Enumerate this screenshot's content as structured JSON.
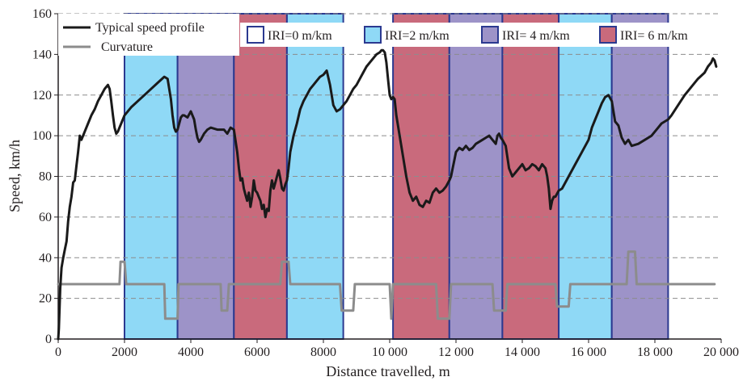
{
  "chart_data": {
    "type": "line",
    "xlabel": "Distance travelled, m",
    "ylabel": "Speed, km/h",
    "xlim": [
      0,
      20000
    ],
    "ylim": [
      0,
      160
    ],
    "x_ticks": [
      {
        "value": 0,
        "label": "0"
      },
      {
        "value": 2000,
        "label": "2000"
      },
      {
        "value": 4000,
        "label": "4000"
      },
      {
        "value": 6000,
        "label": "6000"
      },
      {
        "value": 8000,
        "label": "8000"
      },
      {
        "value": 10000,
        "label": "10 000"
      },
      {
        "value": 12000,
        "label": "12 000"
      },
      {
        "value": 14000,
        "label": "14 000"
      },
      {
        "value": 16000,
        "label": "16 000"
      },
      {
        "value": 18000,
        "label": "18 000"
      },
      {
        "value": 20000,
        "label": "20 000"
      }
    ],
    "y_ticks": [
      {
        "value": 0,
        "label": "0"
      },
      {
        "value": 20,
        "label": "20"
      },
      {
        "value": 40,
        "label": "40"
      },
      {
        "value": 60,
        "label": "60"
      },
      {
        "value": 80,
        "label": "80"
      },
      {
        "value": 100,
        "label": "100"
      },
      {
        "value": 120,
        "label": "120"
      },
      {
        "value": 140,
        "label": "140"
      },
      {
        "value": 160,
        "label": "160"
      }
    ],
    "grid": "horizontal dashed",
    "iri_classes": [
      {
        "key": "iri0",
        "label": "IRI=0 m/km",
        "color": "#ffffff"
      },
      {
        "key": "iri2",
        "label": "IRI=2 m/km",
        "color": "#8fd9f6"
      },
      {
        "key": "iri4",
        "label": "IRI= 4 m/km",
        "color": "#9d93c8"
      },
      {
        "key": "iri6",
        "label": "IRI= 6 m/km",
        "color": "#c96a7c"
      }
    ],
    "band_border_color": "#2b3990",
    "bands": [
      {
        "start": 2000,
        "end": 3600,
        "class": "iri2"
      },
      {
        "start": 3600,
        "end": 5300,
        "class": "iri4"
      },
      {
        "start": 5300,
        "end": 6900,
        "class": "iri6"
      },
      {
        "start": 6900,
        "end": 8600,
        "class": "iri2"
      },
      {
        "start": 10100,
        "end": 11800,
        "class": "iri6"
      },
      {
        "start": 11800,
        "end": 13400,
        "class": "iri4"
      },
      {
        "start": 13400,
        "end": 15100,
        "class": "iri6"
      },
      {
        "start": 15100,
        "end": 16700,
        "class": "iri2"
      },
      {
        "start": 16700,
        "end": 18400,
        "class": "iri4"
      }
    ],
    "series": [
      {
        "name": "Typical speed profile",
        "color": "#1a1a1a",
        "x": [
          0,
          20,
          60,
          100,
          150,
          200,
          250,
          300,
          350,
          400,
          450,
          500,
          550,
          600,
          650,
          700,
          800,
          900,
          1000,
          1100,
          1200,
          1300,
          1400,
          1450,
          1500,
          1550,
          1600,
          1650,
          1700,
          1750,
          1800,
          1850,
          1900,
          2000,
          2100,
          2200,
          2400,
          2600,
          2800,
          3000,
          3200,
          3300,
          3400,
          3450,
          3500,
          3550,
          3600,
          3650,
          3700,
          3750,
          3800,
          3900,
          4000,
          4100,
          4150,
          4200,
          4250,
          4300,
          4400,
          4500,
          4600,
          4800,
          5000,
          5100,
          5200,
          5300,
          5400,
          5450,
          5500,
          5550,
          5600,
          5650,
          5700,
          5750,
          5800,
          5850,
          5900,
          5950,
          6000,
          6050,
          6100,
          6150,
          6200,
          6250,
          6300,
          6350,
          6400,
          6450,
          6500,
          6550,
          6600,
          6650,
          6700,
          6750,
          6800,
          6850,
          6900,
          6950,
          7000,
          7100,
          7200,
          7300,
          7400,
          7500,
          7600,
          7700,
          7800,
          7900,
          8000,
          8100,
          8200,
          8300,
          8400,
          8500,
          8600,
          8700,
          8800,
          8900,
          9000,
          9100,
          9200,
          9300,
          9400,
          9500,
          9600,
          9700,
          9750,
          9800,
          9850,
          9900,
          9950,
          10000,
          10050,
          10100,
          10150,
          10200,
          10300,
          10400,
          10500,
          10600,
          10700,
          10800,
          10900,
          11000,
          11100,
          11200,
          11300,
          11400,
          11500,
          11600,
          11700,
          11800,
          11850,
          11900,
          11950,
          12000,
          12100,
          12200,
          12300,
          12400,
          12500,
          12600,
          12700,
          12800,
          12900,
          13000,
          13100,
          13200,
          13250,
          13300,
          13350,
          13400,
          13500,
          13600,
          13700,
          13800,
          13900,
          14000,
          14100,
          14200,
          14300,
          14400,
          14500,
          14600,
          14700,
          14750,
          14800,
          14850,
          14900,
          14950,
          15000,
          15100,
          15200,
          15400,
          15600,
          15800,
          16000,
          16100,
          16200,
          16300,
          16400,
          16500,
          16600,
          16700,
          16800,
          16900,
          17000,
          17100,
          17200,
          17300,
          17500,
          17700,
          17900,
          18000,
          18100,
          18200,
          18300,
          18400,
          18500,
          18700,
          18900,
          19100,
          19300,
          19500,
          19600,
          19700,
          19750,
          19800,
          19850
        ],
        "y": [
          0,
          5,
          25,
          35,
          40,
          44,
          48,
          58,
          65,
          70,
          77,
          78,
          85,
          92,
          100,
          98,
          102,
          106,
          110,
          113,
          117,
          120,
          123,
          124,
          125,
          123,
          117,
          110,
          104,
          101,
          102,
          104,
          106,
          110,
          112,
          114,
          117,
          120,
          123,
          126,
          129,
          128,
          118,
          110,
          104,
          102,
          103,
          106,
          109,
          110,
          110,
          109,
          112,
          108,
          103,
          99,
          97,
          98,
          101,
          103,
          104,
          103,
          103,
          101,
          104,
          103,
          92,
          84,
          78,
          79,
          74,
          71,
          68,
          72,
          65,
          70,
          78,
          73,
          72,
          70,
          68,
          64,
          66,
          60,
          64,
          63,
          73,
          78,
          74,
          77,
          80,
          83,
          79,
          74,
          73,
          76,
          78,
          84,
          92,
          100,
          106,
          113,
          117,
          120,
          123,
          125,
          127,
          129,
          130,
          132,
          125,
          115,
          112,
          113,
          115,
          117,
          120,
          123,
          125,
          128,
          131,
          134,
          136,
          138,
          140,
          141,
          142,
          142,
          141,
          136,
          128,
          120,
          118,
          119,
          118,
          110,
          100,
          90,
          80,
          72,
          68,
          70,
          66,
          65,
          68,
          67,
          72,
          74,
          72,
          73,
          75,
          78,
          80,
          84,
          88,
          92,
          94,
          93,
          95,
          93,
          94,
          96,
          97,
          98,
          99,
          100,
          98,
          96,
          100,
          101,
          99,
          98,
          95,
          84,
          80,
          82,
          84,
          86,
          83,
          84,
          86,
          85,
          83,
          86,
          84,
          80,
          74,
          64,
          68,
          70,
          70,
          73,
          74,
          80,
          86,
          92,
          98,
          104,
          108,
          112,
          116,
          119,
          120,
          117,
          107,
          105,
          99,
          96,
          98,
          95,
          96,
          98,
          100,
          102,
          104,
          106,
          107,
          108,
          110,
          115,
          120,
          124,
          128,
          131,
          134,
          136,
          138,
          137,
          134
        ],
        "label_text": "Typical speed profile"
      },
      {
        "name": "Curvature",
        "color": "#8c8c8c",
        "x": [
          0,
          1850,
          1880,
          2000,
          2050,
          3200,
          3230,
          3300,
          3350,
          3600,
          3630,
          3700,
          3750,
          4900,
          4930,
          5100,
          5150,
          6700,
          6750,
          6950,
          7000,
          8500,
          8550,
          8900,
          8950,
          10000,
          10050,
          10050,
          10100,
          11400,
          11450,
          11800,
          11850,
          13100,
          13150,
          13500,
          13550,
          15000,
          15050,
          15400,
          15450,
          17150,
          17200,
          17400,
          17450,
          19800
        ],
        "y": [
          27,
          27,
          38,
          38,
          27,
          27,
          10,
          10,
          10,
          10,
          27,
          27,
          27,
          27,
          14,
          14,
          27,
          27,
          38,
          38,
          27,
          27,
          14,
          14,
          27,
          27,
          10,
          10,
          27,
          27,
          10,
          10,
          27,
          27,
          14,
          14,
          27,
          27,
          16,
          16,
          27,
          27,
          43,
          43,
          27,
          27
        ],
        "label_text": "Curvature"
      }
    ]
  }
}
